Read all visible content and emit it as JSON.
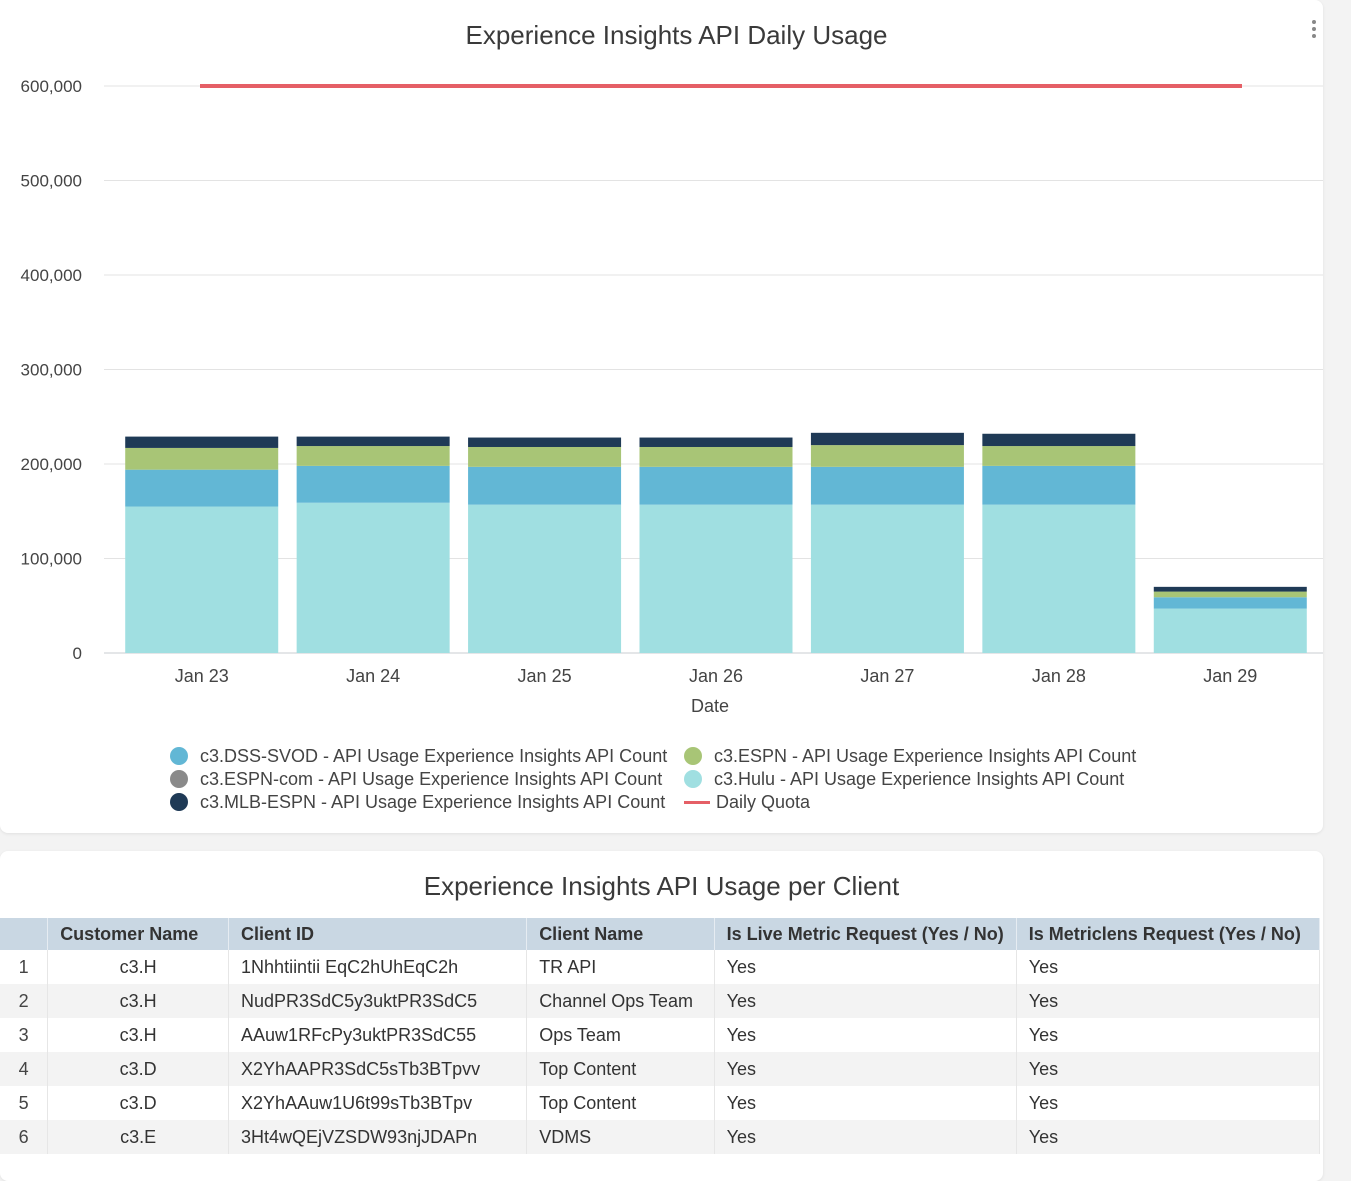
{
  "chart_card": {
    "title": "Experience Insights API Daily Usage",
    "menu_icon": "vertical-dots-icon"
  },
  "chart_data": {
    "type": "bar",
    "stacked": true,
    "title": "Experience Insights API Daily Usage",
    "xlabel": "Date",
    "ylabel": "",
    "ylim": [
      0,
      600000
    ],
    "yticks": [
      0,
      100000,
      200000,
      300000,
      400000,
      500000,
      600000
    ],
    "ytick_labels": [
      "0",
      "100,000",
      "200,000",
      "300,000",
      "400,000",
      "500,000",
      "600,000"
    ],
    "grid": true,
    "legend_position": "bottom",
    "categories": [
      "Jan 23",
      "Jan 24",
      "Jan 25",
      "Jan 26",
      "Jan 27",
      "Jan 28",
      "Jan 29"
    ],
    "series": [
      {
        "name": "c3.Hulu - API Usage Experience Insights API Count",
        "color": "#a0dfe1",
        "values": [
          155000,
          159000,
          157000,
          157000,
          157000,
          157000,
          47000
        ]
      },
      {
        "name": "c3.DSS-SVOD - API Usage Experience Insights API Count",
        "color": "#62b7d5",
        "values": [
          39000,
          39000,
          40000,
          40000,
          40000,
          41000,
          12000
        ]
      },
      {
        "name": "c3.ESPN - API Usage Experience Insights API Count",
        "color": "#a8c576",
        "values": [
          23000,
          21000,
          21000,
          21000,
          23000,
          21000,
          6000
        ]
      },
      {
        "name": "c3.ESPN-com - API Usage Experience Insights API Count",
        "color": "#8a8a8a",
        "values": [
          0,
          0,
          0,
          0,
          0,
          0,
          0
        ]
      },
      {
        "name": "c3.MLB-ESPN - API Usage Experience Insights API Count",
        "color": "#1f3a56",
        "values": [
          12000,
          10000,
          10000,
          10000,
          13000,
          13000,
          5000
        ]
      }
    ],
    "reference_line": {
      "name": "Daily Quota",
      "value": 600000,
      "color": "#e55f66"
    }
  },
  "legend": [
    {
      "label": "c3.DSS-SVOD - API Usage Experience Insights API Count",
      "color": "#62b7d5",
      "kind": "dot"
    },
    {
      "label": "c3.ESPN - API Usage Experience Insights API Count",
      "color": "#a8c576",
      "kind": "dot"
    },
    {
      "label": "c3.ESPN-com - API Usage Experience Insights API Count",
      "color": "#8a8a8a",
      "kind": "dot"
    },
    {
      "label": "c3.Hulu - API Usage Experience Insights API Count",
      "color": "#a0dfe1",
      "kind": "dot"
    },
    {
      "label": "c3.MLB-ESPN - API Usage Experience Insights API Count",
      "color": "#1f3a56",
      "kind": "dot"
    },
    {
      "label": "Daily Quota",
      "color": "#e55f66",
      "kind": "line"
    }
  ],
  "table_card": {
    "title": "Experience Insights API Usage per Client",
    "columns": [
      "",
      "Customer Name",
      "Client ID",
      "Client Name",
      "Is Live Metric Request (Yes / No)",
      "Is Metriclens Request (Yes / No)"
    ],
    "rows": [
      [
        "1",
        "c3.H",
        "1Nhhtiintii EqC2hUhEqC2h",
        "TR API",
        "Yes",
        "Yes"
      ],
      [
        "2",
        "c3.H",
        "NudPR3SdC5y3uktPR3SdC5",
        "Channel Ops Team",
        "Yes",
        "Yes"
      ],
      [
        "3",
        "c3.H",
        "AAuw1RFcPy3uktPR3SdC55",
        "Ops Team",
        "Yes",
        "Yes"
      ],
      [
        "4",
        "c3.D",
        "X2YhAAPR3SdC5sTb3BTpvv",
        "Top Content",
        "Yes",
        "Yes"
      ],
      [
        "5",
        "c3.D",
        "X2YhAAuw1U6t99sTb3BTpv",
        "Top Content",
        "Yes",
        "Yes"
      ],
      [
        "6",
        "c3.E",
        "3Ht4wQEjVZSDW93njJDAPn",
        "VDMS",
        "Yes",
        "Yes"
      ]
    ]
  }
}
